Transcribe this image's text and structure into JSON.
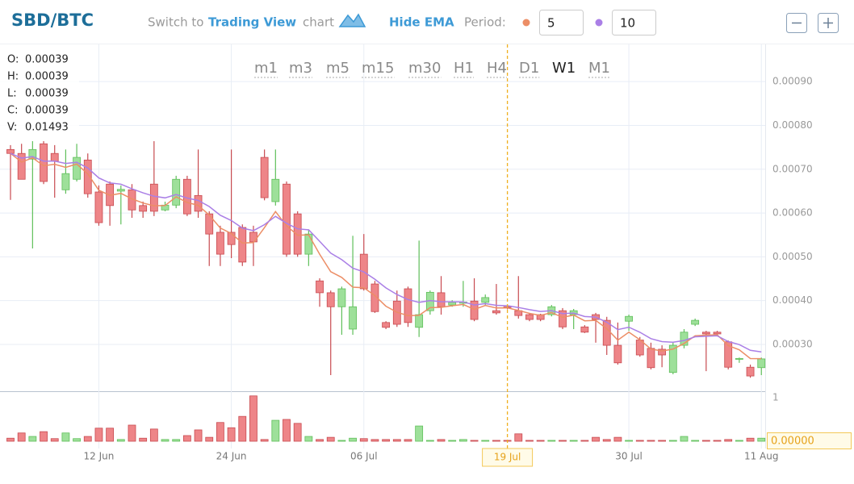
{
  "header": {
    "symbol": "SBD/BTC",
    "switch_prefix": "Switch to",
    "switch_link": "Trading View",
    "switch_suffix": "chart",
    "ema_toggle": "Hide EMA",
    "period_label": "Period:"
  },
  "chart_data": {
    "type": "candlestick",
    "timeframes": [
      "m1",
      "m3",
      "m5",
      "m15",
      "m30",
      "H1",
      "H4",
      "D1",
      "W1",
      "M1"
    ],
    "active_timeframe": "W1",
    "ohlc_info": [
      {
        "label": "O:",
        "value": "0.00039"
      },
      {
        "label": "H:",
        "value": "0.00039"
      },
      {
        "label": "L:",
        "value": "0.00039"
      },
      {
        "label": "C:",
        "value": "0.00039"
      },
      {
        "label": "V:",
        "value": "0.01493"
      }
    ],
    "categories": [
      null,
      null,
      null,
      null,
      null,
      null,
      null,
      null,
      "12 Jun",
      null,
      null,
      null,
      null,
      null,
      null,
      null,
      null,
      null,
      null,
      null,
      "24 Jun",
      null,
      null,
      null,
      null,
      null,
      null,
      null,
      null,
      null,
      null,
      null,
      "06 Jul",
      null,
      null,
      null,
      null,
      null,
      null,
      null,
      null,
      null,
      null,
      null,
      null,
      "19 Jul",
      null,
      null,
      null,
      null,
      null,
      null,
      null,
      null,
      null,
      null,
      "30 Jul",
      null,
      null,
      null,
      null,
      null,
      null,
      null,
      null,
      null,
      null,
      null,
      "11 Aug"
    ],
    "open": [
      0.000745,
      0.000736,
      0.000723,
      0.000758,
      0.000736,
      0.000653,
      0.000677,
      0.000721,
      0.000648,
      0.000666,
      0.00065,
      0.000653,
      0.000617,
      0.000666,
      0.000607,
      0.000618,
      0.000677,
      0.00064,
      0.000598,
      0.000556,
      0.000556,
      0.000567,
      0.000556,
      0.000727,
      0.000626,
      0.000666,
      0.000598,
      0.000506,
      0.000445,
      0.000418,
      0.000386,
      0.000335,
      0.000506,
      0.000438,
      0.00035,
      0.000399,
      0.000427,
      0.000339,
      0.000377,
      0.000418,
      0.00039,
      0.000394,
      0.000399,
      0.000396,
      0.000377,
      0.000386,
      0.000377,
      0.000368,
      0.000368,
      0.000368,
      0.000377,
      0.000368,
      0.00034,
      0.000368,
      0.000355,
      0.000298,
      0.000353,
      0.00031,
      0.000291,
      0.000289,
      0.000236,
      0.000298,
      0.000346,
      0.000328,
      0.000328,
      0.000306,
      0.000266,
      0.000248,
      0.000247
    ],
    "high": [
      0.000755,
      0.000758,
      0.000764,
      0.000764,
      0.000755,
      0.000745,
      0.000758,
      0.000736,
      0.000663,
      0.000672,
      0.000663,
      0.000666,
      0.000626,
      0.000764,
      0.000626,
      0.000685,
      0.000685,
      0.000745,
      0.000604,
      0.000571,
      0.000745,
      0.000574,
      0.000571,
      0.000745,
      0.000745,
      0.000672,
      0.000604,
      0.000561,
      0.000451,
      0.000423,
      0.000432,
      0.000548,
      0.000552,
      0.000445,
      0.000353,
      0.000423,
      0.000432,
      0.000537,
      0.000423,
      0.000456,
      0.000401,
      0.000445,
      0.000451,
      0.000414,
      0.000438,
      0.00039,
      0.000456,
      0.000372,
      0.00037,
      0.00039,
      0.000383,
      0.000381,
      0.000344,
      0.000372,
      0.000363,
      0.00035,
      0.000368,
      0.000317,
      0.000304,
      0.000298,
      0.000304,
      0.000335,
      0.000359,
      0.000331,
      0.000331,
      0.000309,
      0.00027,
      0.000254,
      0.00027
    ],
    "low": [
      0.00063,
      0.000677,
      0.000519,
      0.000666,
      0.000635,
      0.000644,
      0.000672,
      0.000635,
      0.000571,
      0.000571,
      0.000574,
      0.000589,
      0.000589,
      0.000593,
      0.000604,
      0.000611,
      0.000593,
      0.000589,
      0.000479,
      0.000479,
      0.000497,
      0.000479,
      0.000479,
      0.000629,
      0.000617,
      0.0005,
      0.0005,
      0.000479,
      0.000386,
      0.00023,
      0.000322,
      0.000322,
      0.000423,
      0.000372,
      0.000335,
      0.00034,
      0.00034,
      0.000317,
      0.000368,
      0.000368,
      0.000386,
      0.000386,
      0.000353,
      0.00039,
      0.000368,
      0.00038,
      0.000359,
      0.000353,
      0.000353,
      0.000364,
      0.000335,
      0.000335,
      0.000326,
      0.000304,
      0.000276,
      0.000254,
      0.000331,
      0.000272,
      0.000243,
      0.000248,
      0.000232,
      0.000291,
      0.000342,
      0.000239,
      0.000322,
      0.000243,
      0.000258,
      0.000224,
      0.00023
    ],
    "close": [
      0.000736,
      0.000677,
      0.000745,
      0.000672,
      0.000718,
      0.00069,
      0.000727,
      0.000644,
      0.000578,
      0.000617,
      0.000654,
      0.000607,
      0.000604,
      0.000604,
      0.000618,
      0.000677,
      0.000598,
      0.000604,
      0.000552,
      0.000506,
      0.000528,
      0.000488,
      0.000534,
      0.000635,
      0.000677,
      0.000506,
      0.000506,
      0.000552,
      0.000418,
      0.000386,
      0.000427,
      0.000386,
      0.000427,
      0.000375,
      0.000339,
      0.000346,
      0.00035,
      0.000368,
      0.000419,
      0.000386,
      0.000396,
      0.000397,
      0.000357,
      0.000407,
      0.000372,
      0.000384,
      0.000366,
      0.000357,
      0.000357,
      0.000386,
      0.00034,
      0.000377,
      0.000328,
      0.000357,
      0.000298,
      0.000258,
      0.000364,
      0.000276,
      0.000247,
      0.000276,
      0.000298,
      0.000328,
      0.000355,
      0.000324,
      0.000324,
      0.000248,
      0.000268,
      0.000228,
      0.000267
    ],
    "volume": [
      0.07,
      0.19,
      0.11,
      0.22,
      0.06,
      0.19,
      0.06,
      0.11,
      0.3,
      0.3,
      0.04,
      0.37,
      0.07,
      0.28,
      0.04,
      0.04,
      0.13,
      0.26,
      0.09,
      0.43,
      0.31,
      0.57,
      1.04,
      0.04,
      0.48,
      0.5,
      0.41,
      0.11,
      0.04,
      0.09,
      0.02,
      0.07,
      0.06,
      0.04,
      0.04,
      0.04,
      0.04,
      0.35,
      0.02,
      0.04,
      0.02,
      0.04,
      0.02,
      0.02,
      0.02,
      0.02,
      0.17,
      0.02,
      0.02,
      0.02,
      0.02,
      0.02,
      0.02,
      0.09,
      0.04,
      0.09,
      0.02,
      0.02,
      0.02,
      0.02,
      0.02,
      0.11,
      0.02,
      0.02,
      0.02,
      0.04,
      0.02,
      0.07,
      0.07
    ],
    "up_color": "#9ee09a",
    "down_color": "#ee8588",
    "ema": [
      {
        "period": 5,
        "color": "#ec8e66"
      },
      {
        "period": 10,
        "color": "#aa7fe6"
      }
    ],
    "ylim": [
      0.000195,
      0.000985
    ],
    "yticks": [
      {
        "value": 0.0003,
        "label": "0.00030"
      },
      {
        "value": 0.0004,
        "label": "0.00040"
      },
      {
        "value": 0.0005,
        "label": "0.00050"
      },
      {
        "value": 0.0006,
        "label": "0.00060"
      },
      {
        "value": 0.0007,
        "label": "0.00070"
      },
      {
        "value": 0.0008,
        "label": "0.00080"
      },
      {
        "value": 0.0009,
        "label": "0.00090"
      }
    ],
    "volume_ylim": [
      0,
      1.11
    ],
    "volume_ticks": [
      1
    ],
    "volume_tag": "0.00000",
    "crosshair": "19 Jul",
    "grid": true
  }
}
